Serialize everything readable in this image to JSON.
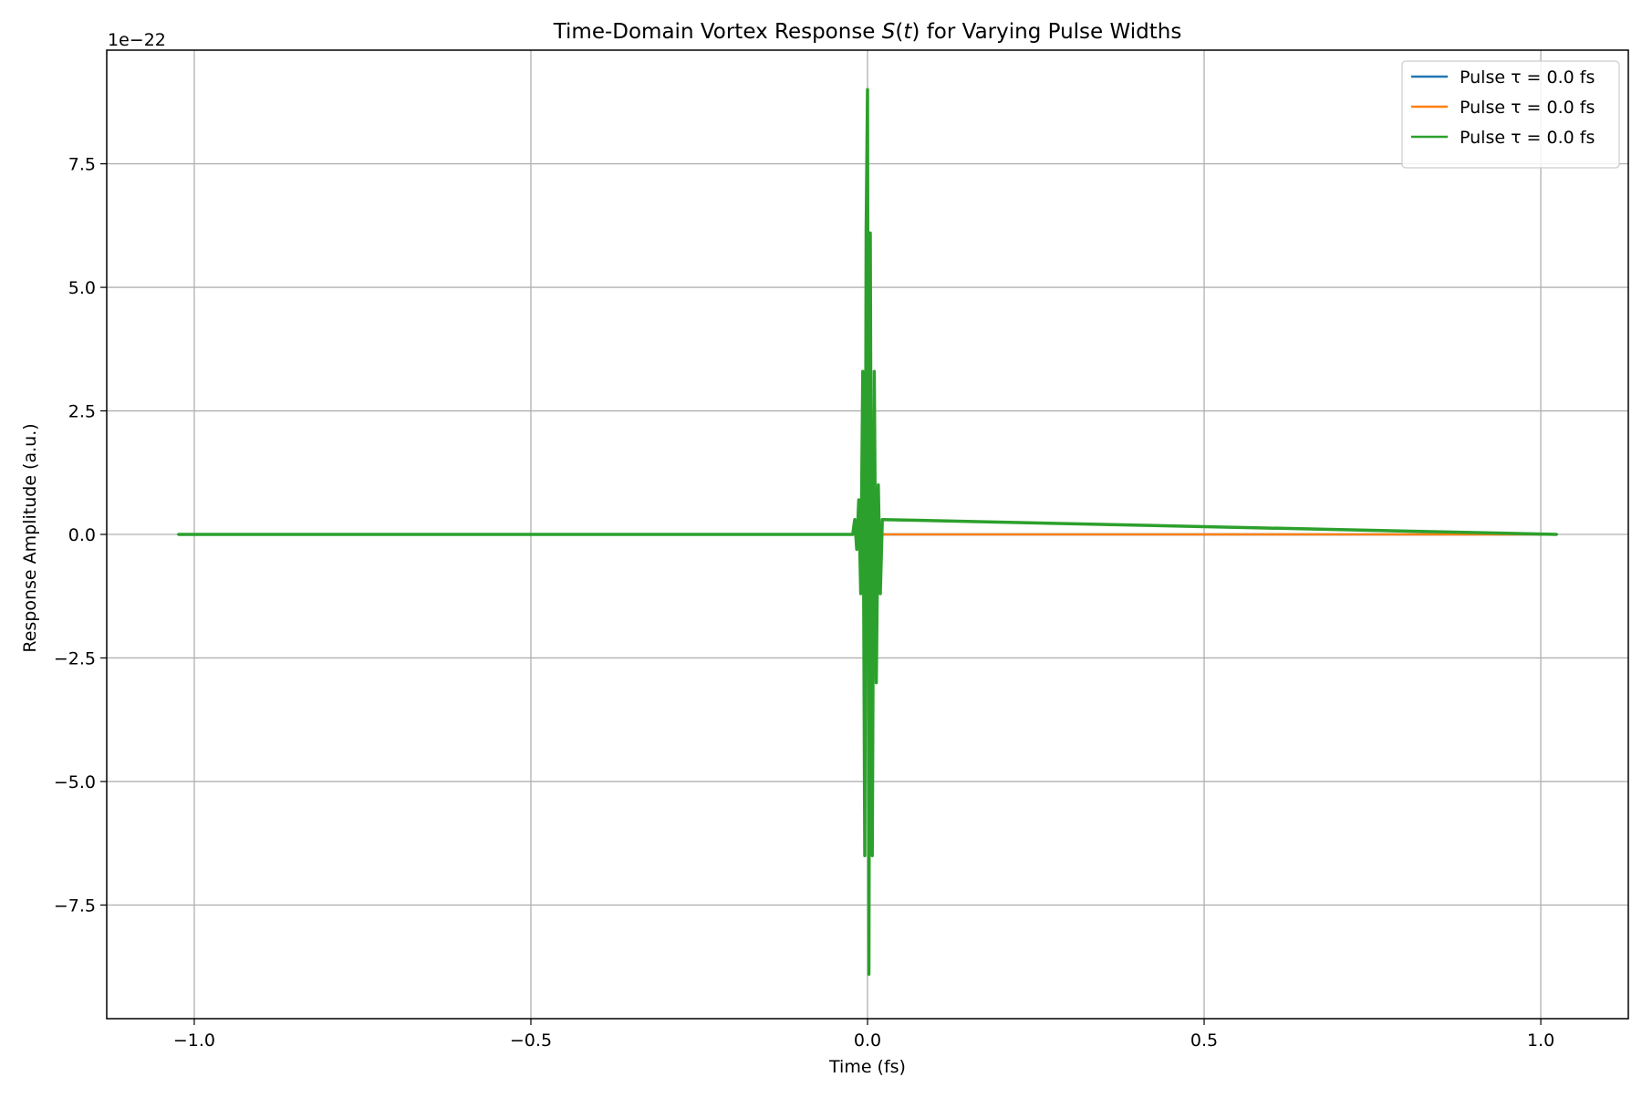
{
  "chart_data": {
    "type": "line",
    "title_prefix": "Time-Domain Vortex Response ",
    "title_math_main": "S",
    "title_math_open": "(",
    "title_math_var": "t",
    "title_math_close": ")",
    "title_suffix": " for Varying Pulse Widths",
    "xlabel": "Time (fs)",
    "ylabel": "Response Amplitude (a.u.)",
    "y_offset_label": "1e−22",
    "xlim": [
      -1.13,
      1.13
    ],
    "ylim": [
      -9.8,
      9.8
    ],
    "y_scale_exponent": -22,
    "grid": true,
    "legend_position": "top-right",
    "x_ticks": [
      {
        "value": -1.0,
        "label": "−1.0"
      },
      {
        "value": -0.5,
        "label": "−0.5"
      },
      {
        "value": 0.0,
        "label": "0.0"
      },
      {
        "value": 0.5,
        "label": "0.5"
      },
      {
        "value": 1.0,
        "label": "1.0"
      }
    ],
    "y_ticks": [
      {
        "value": -7.5,
        "label": "−7.5"
      },
      {
        "value": -5.0,
        "label": "−5.0"
      },
      {
        "value": -2.5,
        "label": "−2.5"
      },
      {
        "value": 0.0,
        "label": "0.0"
      },
      {
        "value": 2.5,
        "label": "2.5"
      },
      {
        "value": 5.0,
        "label": "5.0"
      },
      {
        "value": 7.5,
        "label": "7.5"
      }
    ],
    "series": [
      {
        "name": "Pulse τ = 0.0 fs",
        "color": "#1f77b4",
        "x": [
          -1.024,
          -0.02,
          0.02,
          1.024
        ],
        "y": [
          0.0,
          0.0,
          0.0,
          0.0
        ]
      },
      {
        "name": "Pulse τ = 0.0 fs",
        "color": "#ff7f0e",
        "x": [
          -1.024,
          -0.02,
          0.02,
          1.024
        ],
        "y": [
          0.0,
          0.0,
          0.0,
          0.0
        ]
      },
      {
        "name": "Pulse τ = 0.0 fs",
        "color": "#2ca02c",
        "x": [
          -1.024,
          -0.022,
          -0.019,
          -0.016,
          -0.013,
          -0.01,
          -0.007,
          -0.004,
          -0.002,
          0.0,
          0.002,
          0.004,
          0.007,
          0.01,
          0.013,
          0.016,
          0.019,
          0.022,
          1.024
        ],
        "y": [
          0.0,
          0.0,
          0.3,
          -0.3,
          0.7,
          -1.2,
          3.3,
          -6.5,
          6.1,
          9.0,
          -8.9,
          6.1,
          -6.5,
          3.3,
          -3.0,
          1.0,
          -1.2,
          0.3,
          0.0
        ]
      }
    ]
  }
}
